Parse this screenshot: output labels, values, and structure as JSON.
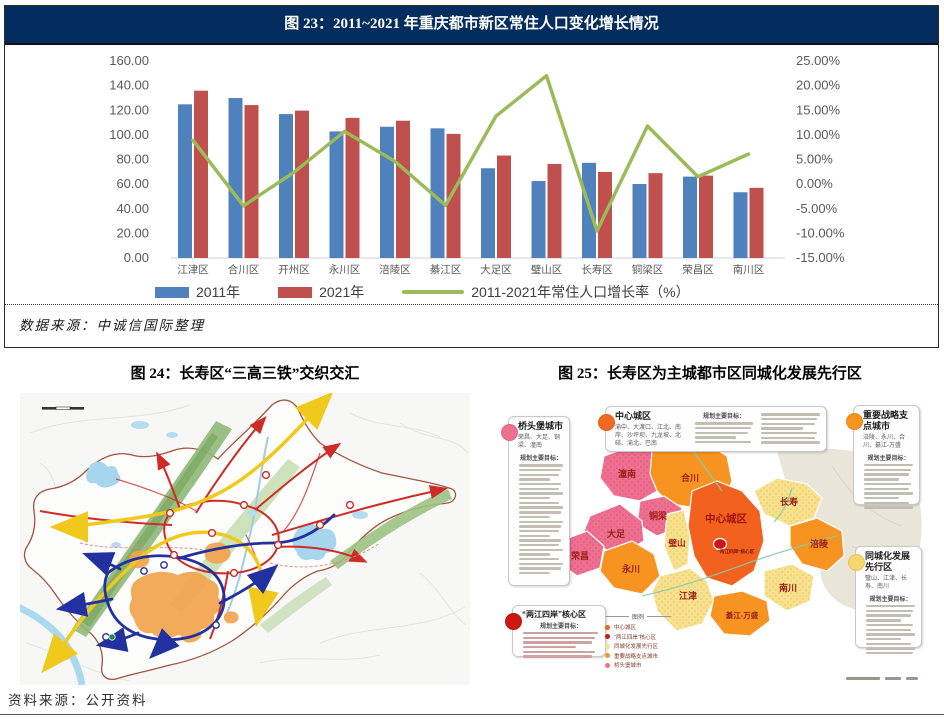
{
  "figure23": {
    "title": "图 23：2011~2021 年重庆都市新区常住人口变化增长情况",
    "source": "数据来源：中诚信国际整理"
  },
  "figure24": {
    "title": "图 24：长寿区“三高三铁”交织交汇"
  },
  "figure25": {
    "title": "图 25：长寿区为主城都市区同城化发展先行区"
  },
  "footer_source": "资料来源：公开资料",
  "chart_data": {
    "type": "bar+line combo",
    "title": "图 23：2011~2021 年重庆都市新区常住人口变化增长情况",
    "categories": [
      "江津区",
      "合川区",
      "开州区",
      "永川区",
      "涪陵区",
      "綦江区",
      "大足区",
      "璧山区",
      "长寿区",
      "铜梁区",
      "荣昌区",
      "南川区"
    ],
    "series": [
      {
        "name": "2011年",
        "type": "bar",
        "axis": "left",
        "color": "#4F81BD",
        "values": [
          124.8,
          129.9,
          116.9,
          102.8,
          106.6,
          105.3,
          72.9,
          62.5,
          77.3,
          60.1,
          66.1,
          53.4
        ]
      },
      {
        "name": "2021年",
        "type": "bar",
        "axis": "left",
        "color": "#C0504D",
        "values": [
          135.9,
          124.2,
          119.7,
          113.8,
          111.5,
          100.8,
          83.2,
          76.4,
          69.9,
          68.9,
          66.9,
          57.0
        ]
      },
      {
        "name": "2011-2021年常住人口增长率（%）",
        "type": "line",
        "axis": "right",
        "color": "#9BBB59",
        "values": [
          8.9,
          -4.4,
          2.4,
          10.7,
          4.6,
          -4.3,
          13.8,
          22.0,
          -9.5,
          11.8,
          1.5,
          6.1
        ]
      }
    ],
    "left_axis": {
      "min": 0,
      "max": 160,
      "step": 20,
      "labels": [
        "160.00",
        "140.00",
        "120.00",
        "100.00",
        "80.00",
        "60.00",
        "40.00",
        "20.00",
        "0.00"
      ]
    },
    "right_axis": {
      "min": -15,
      "max": 25,
      "step": 5,
      "labels": [
        "25.00%",
        "20.00%",
        "15.00%",
        "10.00%",
        "5.00%",
        "0.00%",
        "-5.00%",
        "-10.00%",
        "-15.00%"
      ]
    },
    "grid": false,
    "legend_position": "bottom"
  },
  "map24": {
    "colors": {
      "expressway_red": "#cf2b28",
      "expressway_yellow": "#f0c91c",
      "railway_blue": "#2331a0",
      "urban_orange": "#f2a44d",
      "ridge_green": "#9cc183",
      "water_blue": "#a6d6ee",
      "boundary": "#a2543f"
    }
  },
  "map25": {
    "legend": {
      "title": "图例",
      "items": [
        {
          "label": "中心城区",
          "color": "#f2611d"
        },
        {
          "label": "“两江四岸”核心区",
          "color": "#cc1712"
        },
        {
          "label": "同城化发展先行区",
          "color": "#f7e08e"
        },
        {
          "label": "重要战略支点城市",
          "color": "#f79421"
        },
        {
          "label": "桥头堡城市",
          "color": "#ee7090"
        }
      ]
    },
    "callouts": {
      "bridgehead": {
        "title": "桥头堡城市",
        "cities": "荣昌、大足、铜梁、潼南",
        "goal": "规划主要目标："
      },
      "central": {
        "title": "中心城区",
        "cities": "渝中、大渡口、江北、南岸、沙坪坝、九龙坡、北碚、渝北、巴南",
        "goal": "规划主要目标："
      },
      "strategic": {
        "title": "重要战略支点城市",
        "cities": "涪陵、永川、合川、綦江-万盛",
        "goal": "规划主要目标："
      },
      "integration": {
        "title": "同城化发展先行区",
        "cities": "璧山、江津、长寿、南川",
        "goal": "规划主要目标："
      },
      "core": {
        "title": "“两江四岸”核心区",
        "goal": "规划主要目标："
      }
    },
    "districts": {
      "tongnan": "潼南",
      "hechuan": "合川",
      "tongliang": "铜梁",
      "dazu": "大足",
      "rongchang": "荣昌",
      "yongchuan": "永川",
      "bishan": "璧山",
      "central": "中心城区",
      "changshou": "长寿",
      "fuling": "涪陵",
      "jiangjin": "江津",
      "nanchuan": "南川",
      "qijiang": "綦江-万盛",
      "core": "“两江四岸”核心区"
    }
  }
}
